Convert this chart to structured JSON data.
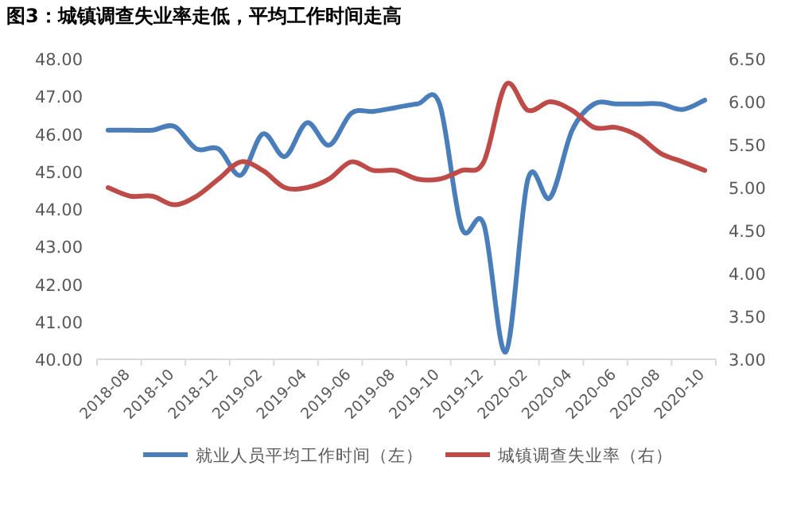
{
  "chart_data": {
    "type": "line",
    "title": "图3：城镇调查失业率走低，平均工作时间走高",
    "categories": [
      "2018-08",
      null,
      "2018-10",
      null,
      "2018-12",
      null,
      "2019-02",
      null,
      "2019-04",
      null,
      "2019-06",
      null,
      "2019-08",
      null,
      "2019-10",
      null,
      "2019-12",
      null,
      "2020-02",
      null,
      "2020-04",
      null,
      "2020-06",
      null,
      "2020-08",
      null,
      "2020-10",
      null
    ],
    "series": [
      {
        "name": "就业人员平均工作时间（左）",
        "color": "#4a7ebb",
        "axis": "y",
        "values": [
          46.1,
          46.1,
          46.1,
          46.2,
          45.6,
          45.6,
          44.9,
          46.0,
          45.4,
          46.3,
          45.7,
          46.55,
          46.6,
          46.7,
          46.8,
          46.8,
          43.5,
          43.6,
          40.2,
          44.8,
          44.3,
          46.1,
          46.8,
          46.8,
          46.8,
          46.8,
          46.65,
          46.9
        ]
      },
      {
        "name": "城镇调查失业率（右）",
        "color": "#be4b48",
        "axis": "y2",
        "values": [
          5.0,
          4.9,
          4.9,
          4.8,
          4.9,
          5.1,
          5.3,
          5.2,
          5.0,
          5.0,
          5.1,
          5.3,
          5.2,
          5.2,
          5.1,
          5.1,
          5.2,
          5.3,
          6.2,
          5.9,
          6.0,
          5.9,
          5.7,
          5.7,
          5.6,
          5.4,
          5.3,
          5.2
        ]
      }
    ],
    "ylim": [
      40,
      48
    ],
    "yticks": [
      {
        "value": 40,
        "label": "40.00"
      },
      {
        "value": 41,
        "label": "41.00"
      },
      {
        "value": 42,
        "label": "42.00"
      },
      {
        "value": 43,
        "label": "43.00"
      },
      {
        "value": 44,
        "label": "44.00"
      },
      {
        "value": 45,
        "label": "45.00"
      },
      {
        "value": 46,
        "label": "46.00"
      },
      {
        "value": 47,
        "label": "47.00"
      },
      {
        "value": 48,
        "label": "48.00"
      }
    ],
    "y2lim": [
      3,
      6.5
    ],
    "y2ticks": [
      {
        "value": 3,
        "label": "3.00"
      },
      {
        "value": 3.5,
        "label": "3.50"
      },
      {
        "value": 4,
        "label": "4.00"
      },
      {
        "value": 4.5,
        "label": "4.50"
      },
      {
        "value": 5,
        "label": "5.00"
      },
      {
        "value": 5.5,
        "label": "5.50"
      },
      {
        "value": 6,
        "label": "6.00"
      },
      {
        "value": 6.5,
        "label": "6.50"
      }
    ],
    "legend": "bottom",
    "grid": false
  }
}
